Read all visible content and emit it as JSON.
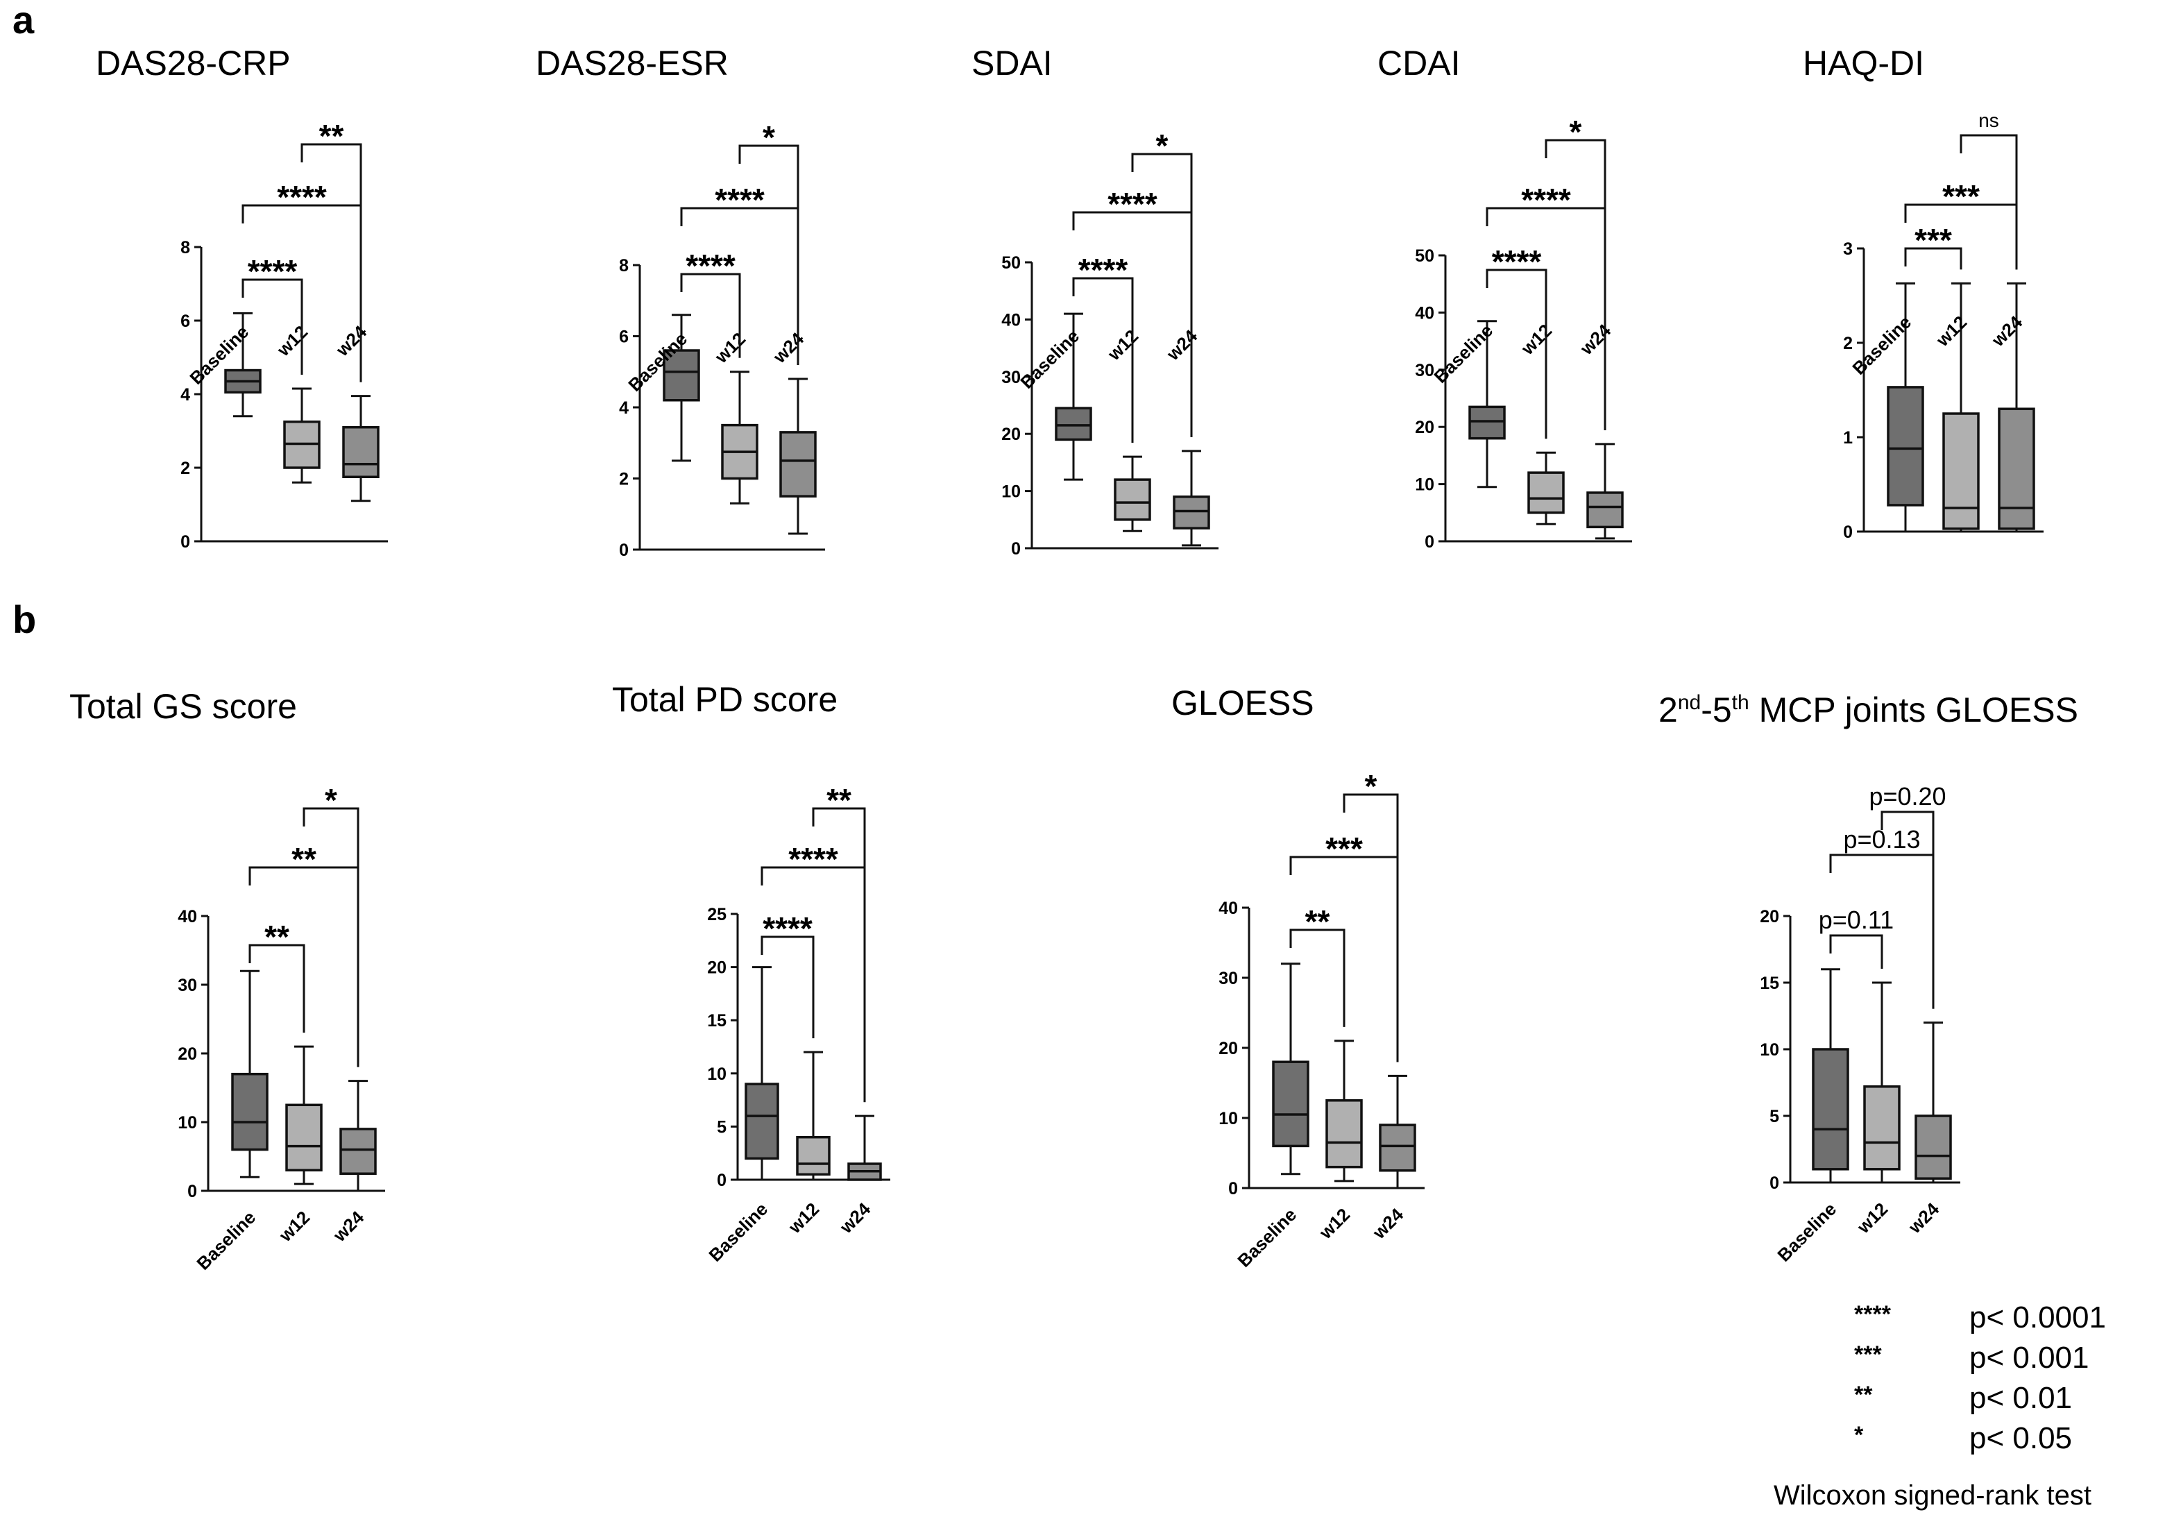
{
  "panel_labels": [
    "a",
    "b"
  ],
  "colors": {
    "dark": "#6f6f6f",
    "light": "#b0b0b0",
    "mid": "#8e8e8e",
    "ink": "#111111"
  },
  "chart_data": [
    {
      "type": "box",
      "title": "DAS28-CRP",
      "categories": [
        "Baseline",
        "w12",
        "w24"
      ],
      "ylim": [
        0,
        8
      ],
      "yticks": [
        0,
        2,
        4,
        6,
        8
      ],
      "boxes": [
        {
          "min": 3.4,
          "q1": 4.05,
          "median": 4.35,
          "q3": 4.65,
          "max": 6.2
        },
        {
          "min": 1.6,
          "q1": 2.0,
          "median": 2.65,
          "q3": 3.25,
          "max": 4.15
        },
        {
          "min": 1.1,
          "q1": 1.75,
          "median": 2.1,
          "q3": 3.1,
          "max": 3.95
        }
      ],
      "comparisons": [
        {
          "from": 0,
          "to": 1,
          "label": "****"
        },
        {
          "from": 0,
          "to": 2,
          "label": "****"
        },
        {
          "from": 1,
          "to": 2,
          "label": "**"
        }
      ]
    },
    {
      "type": "box",
      "title": "DAS28-ESR",
      "categories": [
        "Baseline",
        "w12",
        "w24"
      ],
      "ylim": [
        0,
        8
      ],
      "yticks": [
        0,
        2,
        4,
        6,
        8
      ],
      "boxes": [
        {
          "min": 2.5,
          "q1": 4.2,
          "median": 5.0,
          "q3": 5.6,
          "max": 6.6
        },
        {
          "min": 1.3,
          "q1": 2.0,
          "median": 2.75,
          "q3": 3.5,
          "max": 5.0
        },
        {
          "min": 0.45,
          "q1": 1.5,
          "median": 2.5,
          "q3": 3.3,
          "max": 4.8
        }
      ],
      "comparisons": [
        {
          "from": 0,
          "to": 1,
          "label": "****"
        },
        {
          "from": 0,
          "to": 2,
          "label": "****"
        },
        {
          "from": 1,
          "to": 2,
          "label": "*"
        }
      ]
    },
    {
      "type": "box",
      "title": "SDAI",
      "categories": [
        "Baseline",
        "w12",
        "w24"
      ],
      "ylim": [
        0,
        50
      ],
      "yticks": [
        0,
        10,
        20,
        30,
        40,
        50
      ],
      "boxes": [
        {
          "min": 12,
          "q1": 19,
          "median": 21.5,
          "q3": 24.5,
          "max": 41
        },
        {
          "min": 3,
          "q1": 5,
          "median": 8,
          "q3": 12,
          "max": 16
        },
        {
          "min": 0.5,
          "q1": 3.5,
          "median": 6.5,
          "q3": 9,
          "max": 17
        }
      ],
      "comparisons": [
        {
          "from": 0,
          "to": 1,
          "label": "****"
        },
        {
          "from": 0,
          "to": 2,
          "label": "****"
        },
        {
          "from": 1,
          "to": 2,
          "label": "*"
        }
      ]
    },
    {
      "type": "box",
      "title": "CDAI",
      "categories": [
        "Baseline",
        "w12",
        "w24"
      ],
      "ylim": [
        0,
        50
      ],
      "yticks": [
        0,
        10,
        20,
        30,
        40,
        50
      ],
      "boxes": [
        {
          "min": 9.5,
          "q1": 18,
          "median": 21,
          "q3": 23.5,
          "max": 38.5
        },
        {
          "min": 3,
          "q1": 5,
          "median": 7.5,
          "q3": 12,
          "max": 15.5
        },
        {
          "min": 0.5,
          "q1": 2.5,
          "median": 6,
          "q3": 8.5,
          "max": 17
        }
      ],
      "comparisons": [
        {
          "from": 0,
          "to": 1,
          "label": "****"
        },
        {
          "from": 0,
          "to": 2,
          "label": "****"
        },
        {
          "from": 1,
          "to": 2,
          "label": "*"
        }
      ]
    },
    {
      "type": "box",
      "title": "HAQ-DI",
      "categories": [
        "Baseline",
        "w12",
        "w24"
      ],
      "ylim": [
        0,
        3
      ],
      "yticks": [
        0,
        1,
        2,
        3
      ],
      "boxes": [
        {
          "min": 0,
          "q1": 0.28,
          "median": 0.88,
          "q3": 1.53,
          "max": 2.63
        },
        {
          "min": 0,
          "q1": 0.03,
          "median": 0.25,
          "q3": 1.25,
          "max": 2.63
        },
        {
          "min": 0,
          "q1": 0.03,
          "median": 0.25,
          "q3": 1.3,
          "max": 2.63
        }
      ],
      "comparisons": [
        {
          "from": 0,
          "to": 1,
          "label": "***"
        },
        {
          "from": 0,
          "to": 2,
          "label": "***"
        },
        {
          "from": 1,
          "to": 2,
          "label": "ns"
        }
      ]
    },
    {
      "type": "box",
      "title": "Total GS score",
      "categories": [
        "Baseline",
        "w12",
        "w24"
      ],
      "ylim": [
        0,
        40
      ],
      "yticks": [
        0,
        10,
        20,
        30,
        40
      ],
      "boxes": [
        {
          "min": 2,
          "q1": 6,
          "median": 10,
          "q3": 17,
          "max": 32
        },
        {
          "min": 1,
          "q1": 3,
          "median": 6.5,
          "q3": 12.5,
          "max": 21
        },
        {
          "min": 0,
          "q1": 2.5,
          "median": 6,
          "q3": 9,
          "max": 16
        }
      ],
      "comparisons": [
        {
          "from": 0,
          "to": 1,
          "label": "**"
        },
        {
          "from": 0,
          "to": 2,
          "label": "**"
        },
        {
          "from": 1,
          "to": 2,
          "label": "*"
        }
      ]
    },
    {
      "type": "box",
      "title": "Total PD score",
      "categories": [
        "Baseline",
        "w12",
        "w24"
      ],
      "ylim": [
        0,
        25
      ],
      "yticks": [
        0,
        5,
        10,
        15,
        20,
        25
      ],
      "boxes": [
        {
          "min": 0,
          "q1": 2,
          "median": 6,
          "q3": 9,
          "max": 20
        },
        {
          "min": 0,
          "q1": 0.5,
          "median": 1.5,
          "q3": 4,
          "max": 12
        },
        {
          "min": 0,
          "q1": 0,
          "median": 0.8,
          "q3": 1.5,
          "max": 6
        }
      ],
      "comparisons": [
        {
          "from": 0,
          "to": 1,
          "label": "****"
        },
        {
          "from": 0,
          "to": 2,
          "label": "****"
        },
        {
          "from": 1,
          "to": 2,
          "label": "**"
        }
      ]
    },
    {
      "type": "box",
      "title": "GLOESS",
      "categories": [
        "Baseline",
        "w12",
        "w24"
      ],
      "ylim": [
        0,
        40
      ],
      "yticks": [
        0,
        10,
        20,
        30,
        40
      ],
      "boxes": [
        {
          "min": 2,
          "q1": 6,
          "median": 10.5,
          "q3": 18,
          "max": 32
        },
        {
          "min": 1,
          "q1": 3,
          "median": 6.5,
          "q3": 12.5,
          "max": 21
        },
        {
          "min": 0,
          "q1": 2.5,
          "median": 6,
          "q3": 9,
          "max": 16
        }
      ],
      "comparisons": [
        {
          "from": 0,
          "to": 1,
          "label": "**"
        },
        {
          "from": 0,
          "to": 2,
          "label": "***"
        },
        {
          "from": 1,
          "to": 2,
          "label": "*"
        }
      ]
    },
    {
      "type": "box",
      "title_prefix": "2",
      "title_sup1": "nd",
      "title_mid": "-5",
      "title_sup2": "th",
      "title_suffix": " MCP joints GLOESS",
      "categories": [
        "Baseline",
        "w12",
        "w24"
      ],
      "ylim": [
        0,
        20
      ],
      "yticks": [
        0,
        5,
        10,
        15,
        20
      ],
      "boxes": [
        {
          "min": 0,
          "q1": 1,
          "median": 4,
          "q3": 10,
          "max": 16
        },
        {
          "min": 0,
          "q1": 1,
          "median": 3,
          "q3": 7.2,
          "max": 15
        },
        {
          "min": 0,
          "q1": 0.3,
          "median": 2,
          "q3": 5,
          "max": 12
        }
      ],
      "comparisons": [
        {
          "from": 0,
          "to": 1,
          "label": "p=0.11"
        },
        {
          "from": 0,
          "to": 2,
          "label": "p=0.13"
        },
        {
          "from": 1,
          "to": 2,
          "label": "p=0.20"
        }
      ]
    }
  ],
  "legend": {
    "items": [
      {
        "symbol": "****",
        "text": "p< 0.0001"
      },
      {
        "symbol": "***",
        "text": "p< 0.001"
      },
      {
        "symbol": "**",
        "text": "p< 0.01"
      },
      {
        "symbol": "*",
        "text": "p< 0.05"
      }
    ],
    "note": "Wilcoxon signed-rank test"
  }
}
